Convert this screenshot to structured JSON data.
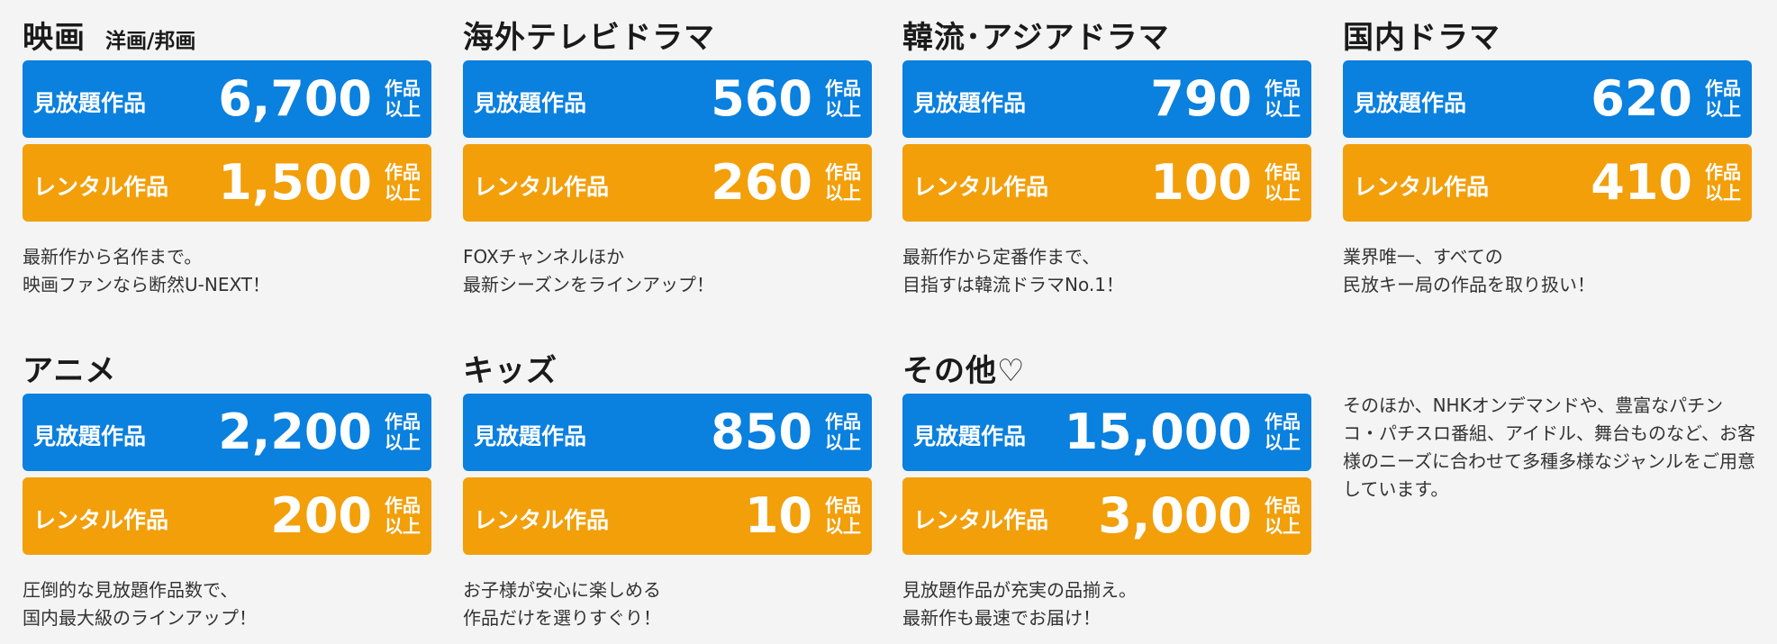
{
  "units": {
    "line1": "作品",
    "line2": "以上"
  },
  "labels": {
    "unlimited": "見放題作品",
    "rental": "レンタル作品"
  },
  "genres": [
    {
      "title": "映画",
      "subtitle": "洋画/邦画",
      "unlimited": "6,700",
      "rental": "1,500",
      "desc": [
        "最新作から名作まで。",
        "映画ファンなら断然U-NEXT！"
      ]
    },
    {
      "title": "海外テレビドラマ",
      "unlimited": "560",
      "rental": "260",
      "desc": [
        "FOXチャンネルほか",
        "最新シーズンをラインアップ！"
      ]
    },
    {
      "title": "韓流･アジアドラマ",
      "unlimited": "790",
      "rental": "100",
      "desc": [
        "最新作から定番作まで、",
        "目指すは韓流ドラマNo.1！"
      ]
    },
    {
      "title": "国内ドラマ",
      "unlimited": "620",
      "rental": "410",
      "desc": [
        "業界唯一、すべての",
        "民放キー局の作品を取り扱い！"
      ]
    },
    {
      "title": "アニメ",
      "unlimited": "2,200",
      "rental": "200",
      "desc": [
        "圧倒的な見放題作品数で、",
        "国内最大級のラインアップ！"
      ]
    },
    {
      "title": "キッズ",
      "unlimited": "850",
      "rental": "10",
      "desc": [
        "お子様が安心に楽しめる",
        "作品だけを選りすぐり！"
      ]
    },
    {
      "title": "その他♡",
      "unlimited": "15,000",
      "rental": "3,000",
      "desc": [
        "見放題作品が充実の品揃え。",
        "最新作も最速でお届け！"
      ]
    }
  ],
  "extra_note": "そのほか、NHKオンデマンドや、豊富なパチンコ・パチスロ番組、アイドル、舞台ものなど、お客様のニーズに合わせて多種多様なジャンルをご用意しています。",
  "colors": {
    "unlimited": "#0a80df",
    "rental": "#f29f0a",
    "background": "#f4f4f4"
  }
}
